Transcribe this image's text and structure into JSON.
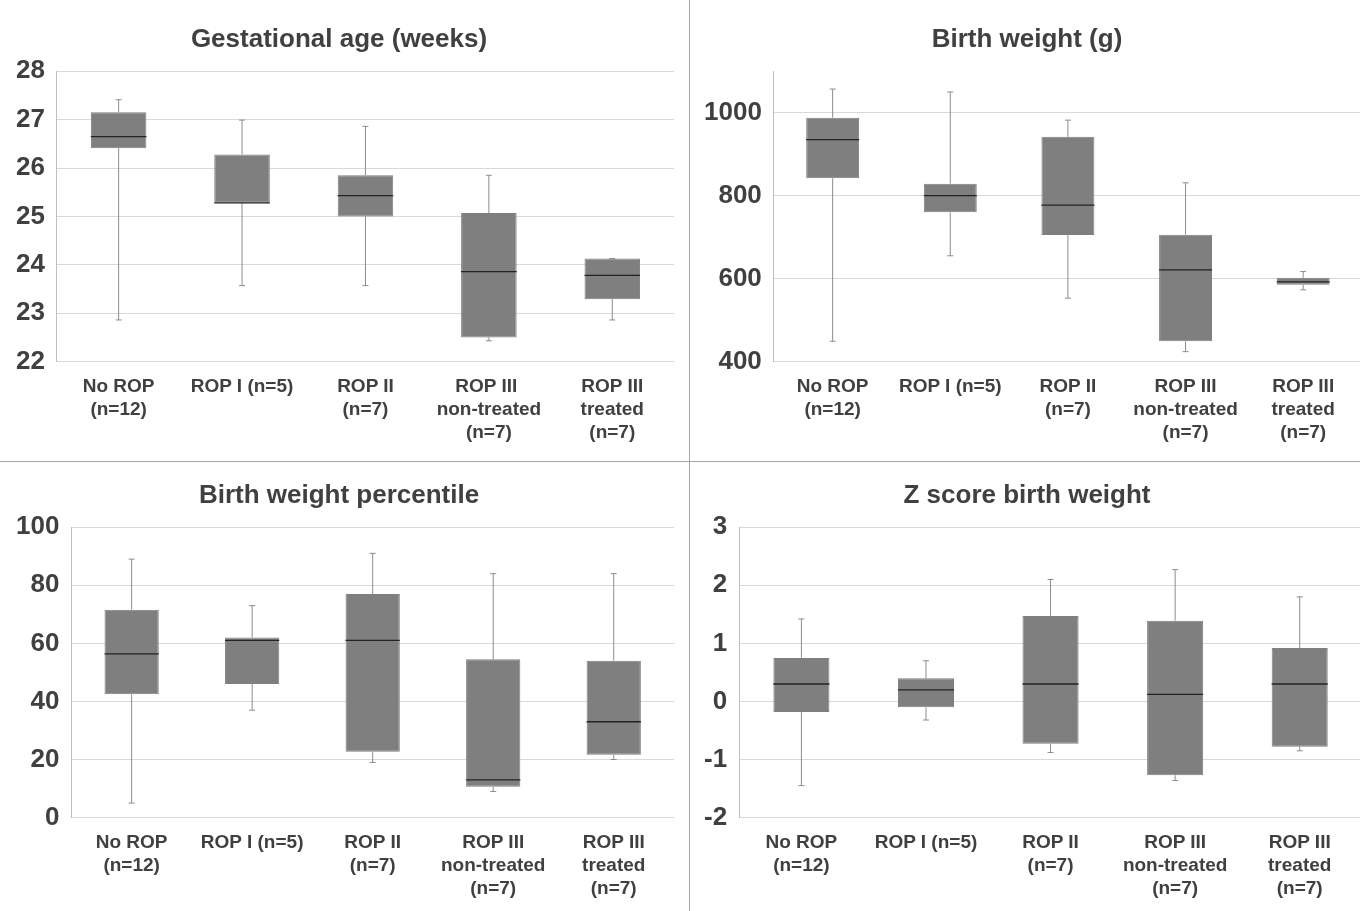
{
  "chart_data": [
    {
      "type": "box",
      "title": "Gestational age (weeks)",
      "categories": [
        "No ROP (n=12)",
        "ROP I (n=5)",
        "ROP II (n=7)",
        "ROP III  non-treated (n=7)",
        "ROP III treated (n=7)"
      ],
      "color": "#7f7f7f",
      "ylim": [
        22,
        28
      ],
      "yticks": [
        22,
        23,
        24,
        25,
        26,
        27,
        28
      ],
      "grid": "y",
      "legend": false,
      "boxes": [
        {
          "low": 22.86,
          "q1": 26.41,
          "median": 26.65,
          "q3": 27.15,
          "high": 27.41
        },
        {
          "low": 23.57,
          "q1": 25.28,
          "median": 25.28,
          "q3": 26.28,
          "high": 26.99
        },
        {
          "low": 23.57,
          "q1": 25.0,
          "median": 25.43,
          "q3": 25.85,
          "high": 26.86
        },
        {
          "low": 22.43,
          "q1": 22.5,
          "median": 23.86,
          "q3": 25.07,
          "high": 25.85
        },
        {
          "low": 22.86,
          "q1": 23.29,
          "median": 23.78,
          "q3": 24.13,
          "high": 24.13
        }
      ]
    },
    {
      "type": "box",
      "title": "Birth weight (g)",
      "categories": [
        "No ROP (n=12)",
        "ROP I (n=5)",
        "ROP II (n=7)",
        "ROP III non-treated (n=7)",
        "ROP III treated (n=7)"
      ],
      "color": "#7f7f7f",
      "ylim": [
        400,
        1100
      ],
      "yticks": [
        400,
        600,
        800,
        1000
      ],
      "grid": "y",
      "legend": false,
      "boxes": [
        {
          "low": 449,
          "q1": 842,
          "median": 935,
          "q3": 988,
          "high": 1057
        },
        {
          "low": 655,
          "q1": 760,
          "median": 800,
          "q3": 829,
          "high": 1050
        },
        {
          "low": 553,
          "q1": 705,
          "median": 777,
          "q3": 942,
          "high": 982
        },
        {
          "low": 424,
          "q1": 449,
          "median": 621,
          "q3": 706,
          "high": 831
        },
        {
          "low": 573,
          "q1": 585,
          "median": 592,
          "q3": 602,
          "high": 617
        }
      ]
    },
    {
      "type": "box",
      "title": "Birth weight percentile",
      "categories": [
        "No ROP (n=12)",
        "ROP I (n=5)",
        "ROP II (n=7)",
        "ROP III non-treated (n=7)",
        "ROP III treated (n=7)"
      ],
      "color": "#7f7f7f",
      "ylim": [
        0,
        100
      ],
      "yticks": [
        0,
        20,
        40,
        60,
        80,
        100
      ],
      "grid": "y",
      "legend": false,
      "boxes": [
        {
          "low": 5,
          "q1": 42.5,
          "median": 56.4,
          "q3": 71.6,
          "high": 89
        },
        {
          "low": 37,
          "q1": 46,
          "median": 61,
          "q3": 62,
          "high": 73
        },
        {
          "low": 19,
          "q1": 22.7,
          "median": 61,
          "q3": 77,
          "high": 91
        },
        {
          "low": 9,
          "q1": 10.6,
          "median": 13,
          "q3": 54.5,
          "high": 84
        },
        {
          "low": 20,
          "q1": 21.6,
          "median": 33,
          "q3": 54,
          "high": 84
        }
      ]
    },
    {
      "type": "box",
      "title": "Z score birth weight",
      "categories": [
        "No ROP (n=12)",
        "ROP I (n=5)",
        "ROP II (n=7)",
        "ROP III non-treated (n=7)",
        "ROP III treated (n=7)"
      ],
      "color": "#7f7f7f",
      "ylim": [
        -2,
        3
      ],
      "yticks": [
        -2,
        -1,
        0,
        1,
        2,
        3
      ],
      "grid": "y",
      "legend": false,
      "boxes": [
        {
          "low": -1.45,
          "q1": -0.18,
          "median": 0.3,
          "q3": 0.75,
          "high": 1.42
        },
        {
          "low": -0.32,
          "q1": -0.1,
          "median": 0.2,
          "q3": 0.4,
          "high": 0.7
        },
        {
          "low": -0.88,
          "q1": -0.73,
          "median": 0.3,
          "q3": 1.47,
          "high": 2.1
        },
        {
          "low": -1.36,
          "q1": -1.27,
          "median": 0.12,
          "q3": 1.39,
          "high": 2.27
        },
        {
          "low": -0.85,
          "q1": -0.78,
          "median": 0.3,
          "q3": 0.92,
          "high": 1.8
        }
      ]
    }
  ]
}
